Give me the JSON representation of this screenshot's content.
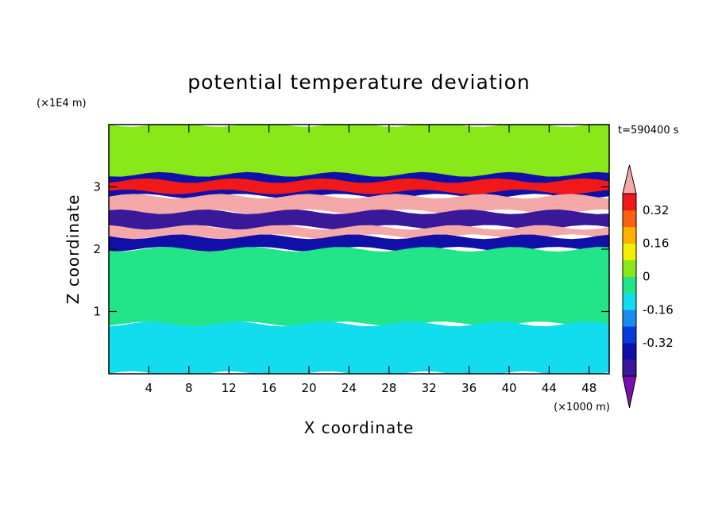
{
  "chart_data": {
    "type": "heatmap",
    "title": "potential temperature deviation",
    "xlabel": "X coordinate",
    "ylabel": "Z coordinate",
    "x_unit": "(×1000 m)",
    "y_unit": "(×1E4 m)",
    "time_label": "t=590400 s",
    "xlim": [
      0,
      50
    ],
    "ylim": [
      0,
      4
    ],
    "x_ticks": [
      4,
      8,
      12,
      16,
      20,
      24,
      28,
      32,
      36,
      40,
      44,
      48
    ],
    "y_ticks": [
      1,
      2,
      3
    ],
    "colorbar": {
      "levels": [
        -0.48,
        -0.4,
        -0.32,
        -0.24,
        -0.16,
        -0.08,
        0,
        0.08,
        0.16,
        0.24,
        0.32,
        0.4
      ],
      "colors": [
        "#7a10b0",
        "#3a189a",
        "#1010a8",
        "#0a3adc",
        "#1a8cf0",
        "#11ddee",
        "#22e58a",
        "#88e818",
        "#f0f000",
        "#ffb000",
        "#ff6010",
        "#f01818",
        "#f5a8a8"
      ],
      "labels": [
        "0.32",
        "0.16",
        "0",
        "-0.16",
        "-0.32"
      ],
      "label_values": [
        0.32,
        0.16,
        0,
        -0.16,
        -0.32
      ]
    },
    "bands": [
      {
        "z0": 3.0,
        "z1": 4.0,
        "value": 0.02
      },
      {
        "z0": 2.85,
        "z1": 3.2,
        "value": -0.4
      },
      {
        "z0": 2.92,
        "z1": 3.1,
        "value": 0.32
      },
      {
        "z0": 2.6,
        "z1": 2.85,
        "value": 0.44
      },
      {
        "z0": 2.35,
        "z1": 2.6,
        "value": -0.45
      },
      {
        "z0": 2.2,
        "z1": 2.35,
        "value": 0.44
      },
      {
        "z0": 2.0,
        "z1": 2.2,
        "value": -0.4
      },
      {
        "z0": 0.8,
        "z1": 2.0,
        "value": -0.02
      },
      {
        "z0": 0.0,
        "z1": 0.8,
        "value": -0.1
      }
    ]
  }
}
